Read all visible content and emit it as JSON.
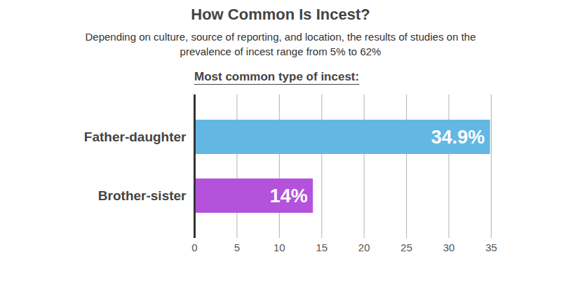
{
  "chart_data": {
    "type": "bar",
    "orientation": "horizontal",
    "title": "How Common Is Incest?",
    "subtitle": "Depending on culture, source of reporting, and location, the results of studies on the prevalence of incest range from 5% to 62%",
    "ylabel": "Most common type of incest:",
    "categories": [
      "Father-daughter",
      "Brother-sister"
    ],
    "values": [
      34.9,
      14
    ],
    "value_labels": [
      "34.9%",
      "14%"
    ],
    "colors": [
      "#63b7e3",
      "#b452db"
    ],
    "xlim": [
      0,
      35
    ],
    "xticks": [
      0,
      5,
      10,
      15,
      20,
      25,
      30,
      35
    ],
    "grid": true,
    "data_labels": true
  }
}
